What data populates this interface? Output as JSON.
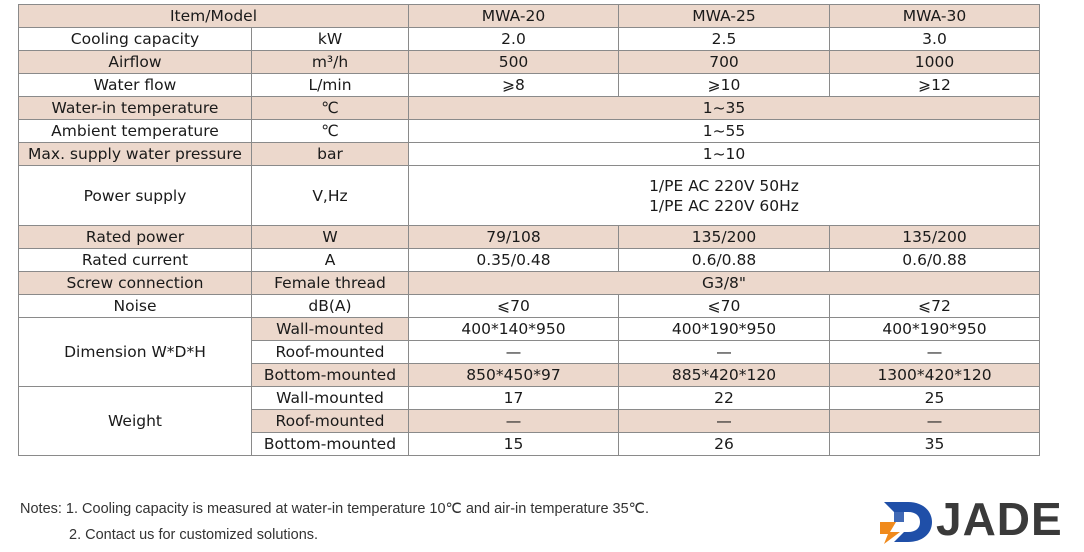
{
  "header": {
    "item_model": "Item/Model",
    "models": [
      "MWA-20",
      "MWA-25",
      "MWA-30"
    ]
  },
  "rows": {
    "cooling": {
      "label": "Cooling capacity",
      "unit": "kW",
      "values": [
        "2.0",
        "2.5",
        "3.0"
      ]
    },
    "airflow": {
      "label": "Airflow",
      "unit": "m³/h",
      "values": [
        "500",
        "700",
        "1000"
      ]
    },
    "waterflow": {
      "label": "Water flow",
      "unit": "L/min",
      "values": [
        "⩾8",
        "⩾10",
        "⩾12"
      ]
    },
    "water_in": {
      "label": "Water-in temperature",
      "unit": "℃",
      "value": "1~35"
    },
    "ambient": {
      "label": "Ambient temperature",
      "unit": "℃",
      "value": "1~55"
    },
    "pressure": {
      "label": "Max. supply water pressure",
      "unit": "bar",
      "value": "1~10"
    },
    "power_supply": {
      "label": "Power supply",
      "unit": "V,Hz",
      "line1": "1/PE AC 220V 50Hz",
      "line2": "1/PE AC 220V 60Hz"
    },
    "rated_power": {
      "label": "Rated power",
      "unit": "W",
      "values": [
        "79/108",
        "135/200",
        "135/200"
      ]
    },
    "rated_current": {
      "label": "Rated current",
      "unit": "A",
      "values": [
        "0.35/0.48",
        "0.6/0.88",
        "0.6/0.88"
      ]
    },
    "screw": {
      "label": "Screw connection",
      "unit": "Female thread",
      "value": "G3/8\""
    },
    "noise": {
      "label": "Noise",
      "unit": "dB(A)",
      "values": [
        "⩽70",
        "⩽70",
        "⩽72"
      ]
    },
    "dimension": {
      "label": "Dimension W*D*H",
      "wall": {
        "label": "Wall-mounted",
        "values": [
          "400*140*950",
          "400*190*950",
          "400*190*950"
        ]
      },
      "roof": {
        "label": "Roof-mounted",
        "values": [
          "—",
          "—",
          "—"
        ]
      },
      "bottom": {
        "label": "Bottom-mounted",
        "values": [
          "850*450*97",
          "885*420*120",
          "1300*420*120"
        ]
      }
    },
    "weight": {
      "label": "Weight",
      "wall": {
        "label": "Wall-mounted",
        "values": [
          "17",
          "22",
          "25"
        ]
      },
      "roof": {
        "label": "Roof-mounted",
        "values": [
          "—",
          "—",
          "—"
        ]
      },
      "bottom": {
        "label": "Bottom-mounted",
        "values": [
          "15",
          "26",
          "35"
        ]
      }
    }
  },
  "notes": {
    "line1": "Notes: 1. Cooling capacity is measured at water-in temperature 10℃ and air-in temperature 35℃.",
    "line2": "2. Contact us for customized solutions."
  },
  "logo": {
    "text": "JADE",
    "icon": "jade-logo-mark-icon"
  },
  "colors": {
    "pink": "#ecd8cc",
    "border": "#8a8a8a",
    "logo_blue": "#1f4fa8",
    "logo_orange": "#f08a1c",
    "logo_text": "#3a3a3a"
  }
}
